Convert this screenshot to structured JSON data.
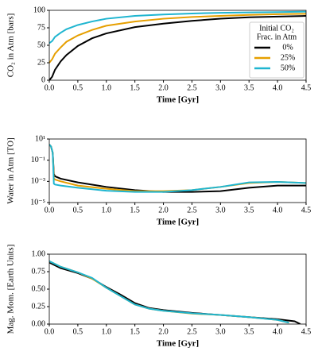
{
  "chart_data": [
    {
      "type": "line",
      "ylabel": "CO₂ in Atm [bars]",
      "xlabel": "Time [Gyr]",
      "x": [
        0,
        0.05,
        0.1,
        0.2,
        0.3,
        0.5,
        0.75,
        1,
        1.5,
        2,
        2.5,
        3,
        3.5,
        4,
        4.5
      ],
      "series": [
        {
          "name": "0%",
          "color": "#000000",
          "values": [
            0,
            5,
            15,
            27,
            36,
            49,
            60,
            67,
            76,
            81,
            85,
            88,
            90,
            91,
            92
          ]
        },
        {
          "name": "25%",
          "color": "#e69f00",
          "values": [
            25,
            30,
            38,
            47,
            55,
            64,
            72,
            78,
            84,
            88,
            90.5,
            92,
            93.5,
            94.5,
            95
          ]
        },
        {
          "name": "50%",
          "color": "#1fb5d0",
          "values": [
            53,
            56,
            62,
            68,
            73,
            79,
            84,
            88,
            92,
            94,
            95.5,
            96.5,
            97,
            97.5,
            98
          ]
        }
      ],
      "legend_title": [
        "Initial CO₂",
        "Frac. in Atm"
      ],
      "legend": "lower right",
      "xlim": [
        0,
        4.5
      ],
      "xticks": [
        {
          "value": 0,
          "label": "0.0"
        },
        0.5,
        {
          "value": 1,
          "label": "1.0"
        },
        1.5,
        {
          "value": 2,
          "label": "2.0"
        },
        2.5,
        {
          "value": 3,
          "label": "3.0"
        },
        3.5,
        {
          "value": 4,
          "label": "4.0"
        },
        4.5
      ],
      "ylim": [
        0,
        100
      ],
      "yticks": [
        0,
        25,
        50,
        75,
        100
      ]
    },
    {
      "type": "line",
      "ylabel": "Water in Atm [TO]",
      "xlabel": "Time [Gyr]",
      "yscale": "log",
      "x": [
        0,
        0.03,
        0.06,
        0.08,
        0.1,
        0.2,
        0.5,
        1,
        1.5,
        2,
        2.5,
        3,
        3.5,
        4,
        4.5
      ],
      "series": [
        {
          "color": "#000000",
          "values": [
            3,
            2,
            0.5,
            0.005,
            0.003,
            0.0018,
            0.0008,
            0.0003,
            0.00015,
            0.0001,
            0.0001,
            0.00012,
            0.00025,
            0.0004,
            0.0004
          ]
        },
        {
          "color": "#e69f00",
          "values": [
            3,
            2,
            0.5,
            0.002,
            0.0015,
            0.001,
            0.0004,
            0.0002,
            0.00012,
            0.00012,
            0.00015,
            0.0003,
            0.0007,
            0.0009,
            0.0007
          ]
        },
        {
          "color": "#1fb5d0",
          "values": [
            3,
            2,
            0.5,
            0.0006,
            0.0005,
            0.0004,
            0.00025,
            0.00013,
            0.0001,
            0.0001,
            0.00015,
            0.0003,
            0.0008,
            0.0009,
            0.0007
          ]
        }
      ],
      "xlim": [
        0,
        4.5
      ],
      "xticks": [
        {
          "value": 0,
          "label": "0.0"
        },
        0.5,
        {
          "value": 1,
          "label": "1.0"
        },
        1.5,
        {
          "value": 2,
          "label": "2.0"
        },
        2.5,
        {
          "value": 3,
          "label": "3.0"
        },
        3.5,
        {
          "value": 4,
          "label": "4.0"
        },
        4.5
      ],
      "ylim": [
        1e-05,
        10
      ],
      "yticks": [
        {
          "value": 10,
          "label": "10¹"
        },
        {
          "value": 0.1,
          "label": "10⁻¹"
        },
        {
          "value": 0.001,
          "label": "10⁻³"
        },
        {
          "value": 1e-05,
          "label": "10⁻⁵"
        }
      ]
    },
    {
      "type": "line",
      "ylabel": "Mag. Mom. [Earth Units]",
      "xlabel": "Time [Gyr]",
      "x": [
        0,
        0.2,
        0.5,
        0.75,
        1,
        1.25,
        1.5,
        1.75,
        2,
        2.5,
        3,
        3.5,
        4,
        4.2,
        4.3,
        4.4
      ],
      "series": [
        {
          "color": "#000000",
          "values": [
            0.88,
            0.8,
            0.73,
            0.65,
            0.53,
            0.42,
            0.3,
            0.23,
            0.2,
            0.16,
            0.13,
            0.1,
            0.07,
            0.05,
            0.04,
            0
          ]
        },
        {
          "color": "#e69f00",
          "values": [
            0.9,
            0.82,
            0.74,
            0.65,
            0.52,
            0.4,
            0.28,
            0.22,
            0.19,
            0.15,
            0.13,
            0.1,
            0.06,
            0.02,
            null,
            null
          ]
        },
        {
          "color": "#1fb5d0",
          "values": [
            0.9,
            0.82,
            0.74,
            0.66,
            0.52,
            0.4,
            0.28,
            0.22,
            0.19,
            0.155,
            0.13,
            0.1,
            0.06,
            0.02,
            null,
            null
          ]
        }
      ],
      "xlim": [
        0,
        4.5
      ],
      "xticks": [
        {
          "value": 0,
          "label": "0.0"
        },
        0.5,
        {
          "value": 1,
          "label": "1.0"
        },
        1.5,
        {
          "value": 2,
          "label": "2.0"
        },
        2.5,
        {
          "value": 3,
          "label": "3.0"
        },
        3.5,
        {
          "value": 4,
          "label": "4.0"
        },
        4.5
      ],
      "ylim": [
        0,
        1
      ],
      "yticks": [
        {
          "value": 0,
          "label": "0.00"
        },
        0.25,
        {
          "value": 0.5,
          "label": "0.50"
        },
        0.75,
        {
          "value": 1,
          "label": "1.00"
        }
      ]
    }
  ]
}
